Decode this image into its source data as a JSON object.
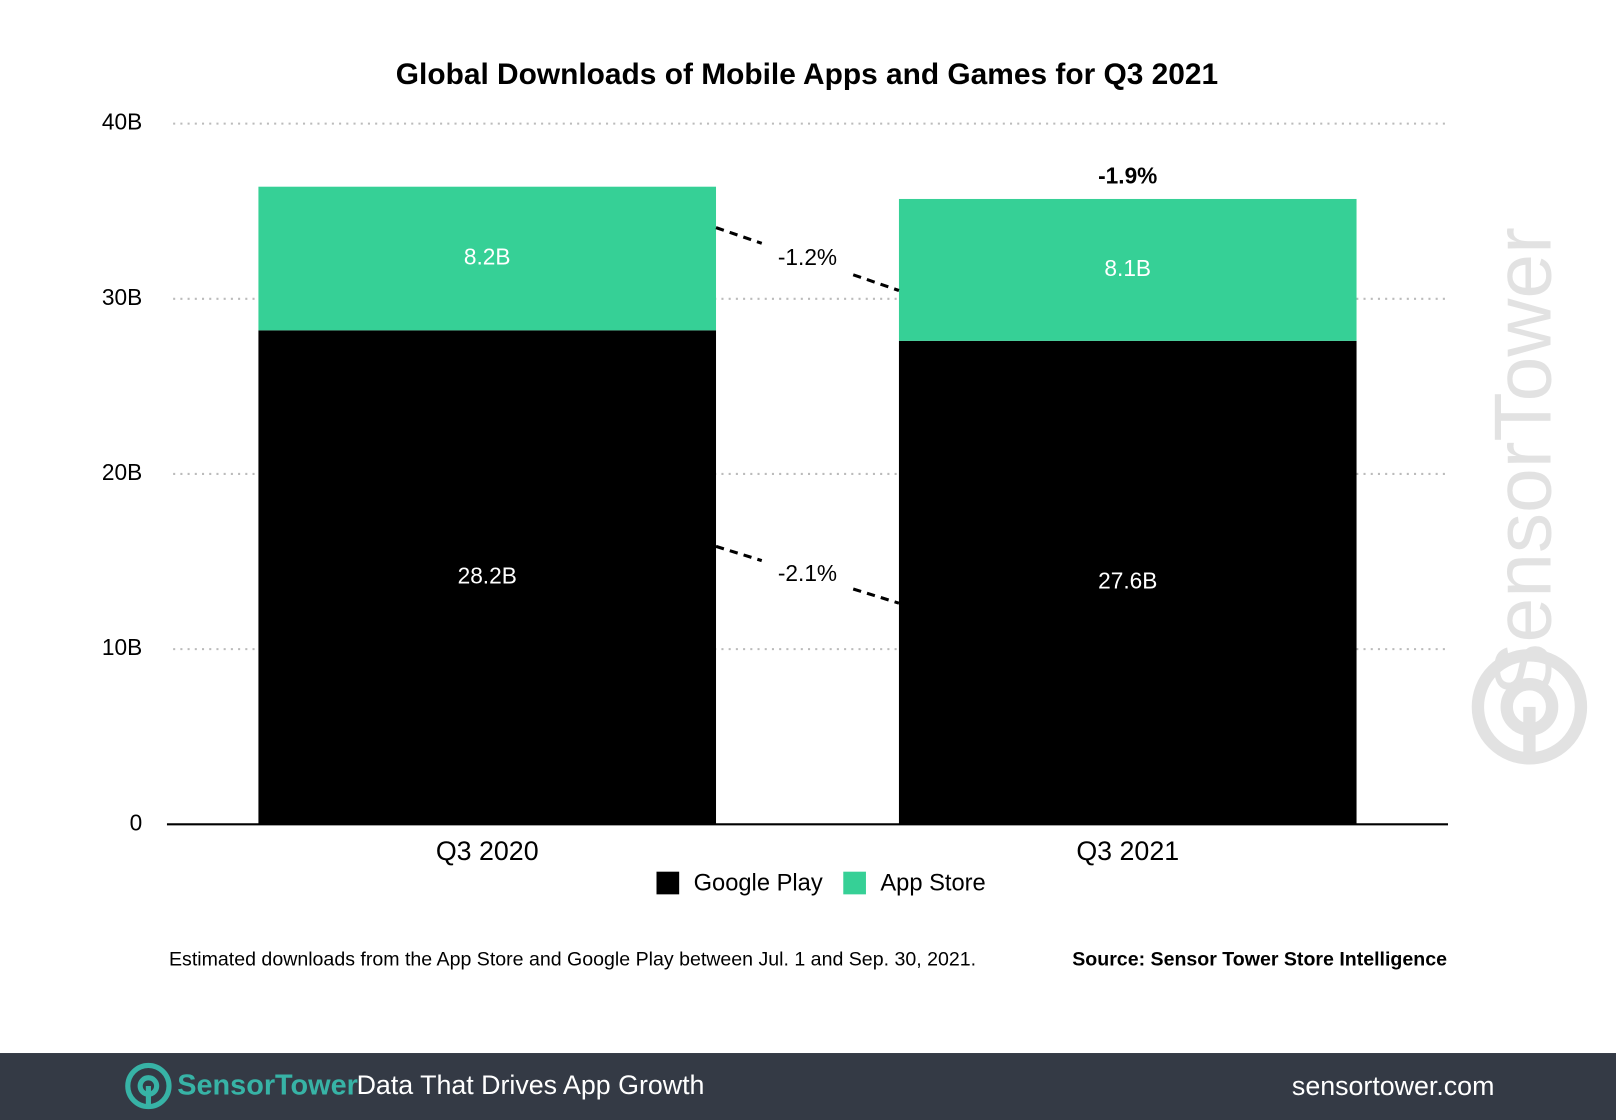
{
  "chart_data": {
    "type": "stacked_bar",
    "title": "Global Downloads of Mobile Apps and Games for Q3 2021",
    "categories": [
      "Q3 2020",
      "Q3 2021"
    ],
    "series": [
      {
        "name": "Google Play",
        "color": "#000000",
        "values": [
          28.2,
          27.6
        ],
        "value_labels": [
          "28.2B",
          "27.6B"
        ]
      },
      {
        "name": "App Store",
        "color": "#36d096",
        "values": [
          8.2,
          8.1
        ],
        "value_labels": [
          "8.2B",
          "8.1B"
        ]
      }
    ],
    "annotations": [
      "-2.1%",
      "-1.2%",
      "-1.9%"
    ],
    "ylim": [
      0,
      40
    ],
    "yticks": [
      0,
      {
        "value": 10,
        "label": "10B"
      },
      {
        "value": 20,
        "label": "20B"
      },
      {
        "value": 30,
        "label": "30B"
      },
      {
        "value": 40,
        "label": "40B"
      }
    ],
    "grid": true,
    "note": "Estimated downloads from the App Store and Google Play between Jul. 1 and Sep. 30, 2021.",
    "source": "Source: Sensor Tower Store Intelligence"
  },
  "watermark": "SensorTower",
  "footer": {
    "logo": "SensorTower",
    "tagline": "Data That Drives App Growth",
    "url": "sensortower.com"
  }
}
